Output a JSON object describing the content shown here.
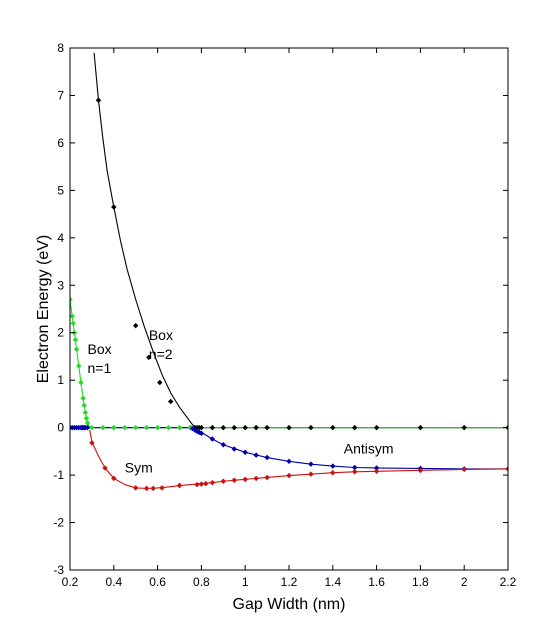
{
  "chart_data": {
    "type": "line",
    "title": "",
    "xlabel": "Gap Width (nm)",
    "ylabel": "Electron Energy (eV)",
    "xlim": [
      0.2,
      2.2
    ],
    "ylim": [
      -3,
      8
    ],
    "xticks": [
      "0.2",
      "0.4",
      "0.6",
      "0.8",
      "1",
      "1.2",
      "1.4",
      "1.6",
      "1.8",
      "2",
      "2.2"
    ],
    "xtick_values": [
      0.2,
      0.4,
      0.6,
      0.8,
      1.0,
      1.2,
      1.4,
      1.6,
      1.8,
      2.0,
      2.2
    ],
    "yticks": [
      "-3",
      "-2",
      "-1",
      "0",
      "1",
      "2",
      "3",
      "4",
      "5",
      "6",
      "7",
      "8"
    ],
    "ytick_values": [
      -3,
      -2,
      -1,
      0,
      1,
      2,
      3,
      4,
      5,
      6,
      7,
      8
    ],
    "grid": false,
    "annotations": [
      {
        "text": "Box",
        "x": 0.28,
        "y": 1.55
      },
      {
        "text": "n=1",
        "x": 0.28,
        "y": 1.15
      },
      {
        "text": "Box",
        "x": 0.56,
        "y": 1.85
      },
      {
        "text": "n=2",
        "x": 0.56,
        "y": 1.45
      },
      {
        "text": "Antisym",
        "x": 1.45,
        "y": -0.55
      },
      {
        "text": "Sym",
        "x": 0.45,
        "y": -0.95
      }
    ],
    "series": [
      {
        "color": "#000000",
        "line_x": [
          0.31,
          0.32,
          0.33,
          0.35,
          0.37,
          0.4,
          0.43,
          0.46,
          0.5,
          0.54,
          0.58,
          0.62,
          0.66,
          0.7,
          0.74,
          0.76,
          0.78,
          2.2
        ],
        "line_y": [
          7.9,
          7.4,
          6.9,
          6.1,
          5.4,
          4.65,
          3.95,
          3.35,
          2.7,
          2.12,
          1.6,
          1.12,
          0.73,
          0.43,
          0.18,
          0.06,
          0.0,
          0.0
        ],
        "markers_x": [
          0.33,
          0.4,
          0.5,
          0.56,
          0.61,
          0.66,
          0.75,
          0.77,
          0.78,
          0.79,
          0.8,
          0.85,
          0.9,
          0.95,
          1.0,
          1.05,
          1.1,
          1.2,
          1.3,
          1.4,
          1.5,
          1.6,
          1.8,
          2.0,
          2.2
        ],
        "markers_y": [
          6.9,
          4.65,
          2.15,
          1.48,
          0.95,
          0.55,
          0.0,
          0.0,
          0.0,
          0.0,
          0.0,
          0.0,
          0.0,
          0.0,
          0.0,
          0.0,
          0.0,
          0.0,
          0.0,
          0.0,
          0.0,
          0.0,
          0.0,
          0.0,
          0.0
        ]
      },
      {
        "color": "#22dd22",
        "line_x": [
          0.2,
          0.21,
          0.22,
          0.23,
          0.24,
          0.25,
          0.26,
          0.27,
          0.28,
          0.29,
          2.2
        ],
        "line_y": [
          2.7,
          2.35,
          2.0,
          1.65,
          1.3,
          0.95,
          0.62,
          0.32,
          0.1,
          0.0,
          0.0
        ],
        "markers_x": [
          0.2,
          0.21,
          0.215,
          0.22,
          0.225,
          0.23,
          0.24,
          0.25,
          0.26,
          0.265,
          0.27,
          0.275,
          0.28,
          0.3,
          0.35,
          0.4,
          0.45,
          0.5,
          0.55,
          0.6,
          0.65,
          0.7,
          0.75
        ],
        "markers_y": [
          2.7,
          2.35,
          2.2,
          2.0,
          1.85,
          1.65,
          1.3,
          0.95,
          0.62,
          0.47,
          0.32,
          0.2,
          0.1,
          0.0,
          0.0,
          0.0,
          0.0,
          0.0,
          0.0,
          0.0,
          0.0,
          0.0,
          0.0
        ]
      },
      {
        "color": "#0000aa",
        "line_x": [
          0.2,
          0.29,
          0.76,
          0.8,
          0.85,
          0.9,
          1.0,
          1.1,
          1.2,
          1.3,
          1.4,
          1.5,
          1.6,
          1.8,
          2.0,
          2.2
        ],
        "line_y": [
          0.0,
          0.0,
          0.0,
          -0.1,
          -0.24,
          -0.36,
          -0.52,
          -0.63,
          -0.71,
          -0.77,
          -0.81,
          -0.84,
          -0.85,
          -0.86,
          -0.87,
          -0.87
        ],
        "markers_x": [
          0.2,
          0.21,
          0.22,
          0.23,
          0.24,
          0.25,
          0.255,
          0.26,
          0.265,
          0.27,
          0.28,
          0.76,
          0.77,
          0.78,
          0.79,
          0.8,
          0.85,
          0.9,
          0.95,
          1.0,
          1.05,
          1.1,
          1.2,
          1.3,
          1.4,
          1.5,
          1.6,
          1.8,
          2.0,
          2.2
        ],
        "markers_y": [
          0.0,
          0.0,
          0.0,
          0.0,
          0.0,
          0.0,
          0.0,
          0.0,
          0.0,
          0.0,
          0.0,
          -0.02,
          -0.05,
          -0.08,
          -0.1,
          -0.12,
          -0.24,
          -0.36,
          -0.45,
          -0.52,
          -0.58,
          -0.63,
          -0.71,
          -0.77,
          -0.81,
          -0.84,
          -0.85,
          -0.86,
          -0.87,
          -0.87
        ]
      },
      {
        "color": "#cc1111",
        "line_x": [
          0.29,
          0.3,
          0.33,
          0.36,
          0.4,
          0.45,
          0.5,
          0.55,
          0.6,
          0.65,
          0.7,
          0.75,
          0.8,
          0.85,
          0.9,
          1.0,
          1.1,
          1.2,
          1.3,
          1.4,
          1.5,
          1.6,
          1.8,
          2.0,
          2.2
        ],
        "line_y": [
          -0.05,
          -0.3,
          -0.6,
          -0.85,
          -1.07,
          -1.2,
          -1.27,
          -1.28,
          -1.27,
          -1.25,
          -1.22,
          -1.2,
          -1.18,
          -1.16,
          -1.13,
          -1.09,
          -1.05,
          -1.01,
          -0.98,
          -0.95,
          -0.93,
          -0.92,
          -0.9,
          -0.88,
          -0.87
        ],
        "markers_x": [
          0.3,
          0.36,
          0.4,
          0.5,
          0.55,
          0.58,
          0.62,
          0.7,
          0.78,
          0.8,
          0.82,
          0.85,
          0.9,
          0.95,
          1.0,
          1.05,
          1.1,
          1.2,
          1.3,
          1.4,
          1.5,
          1.6,
          1.8,
          2.0,
          2.2
        ],
        "markers_y": [
          -0.32,
          -0.85,
          -1.07,
          -1.27,
          -1.28,
          -1.28,
          -1.27,
          -1.22,
          -1.2,
          -1.19,
          -1.18,
          -1.16,
          -1.13,
          -1.11,
          -1.09,
          -1.07,
          -1.05,
          -1.01,
          -0.98,
          -0.95,
          -0.93,
          -0.92,
          -0.9,
          -0.88,
          -0.87
        ]
      }
    ]
  }
}
